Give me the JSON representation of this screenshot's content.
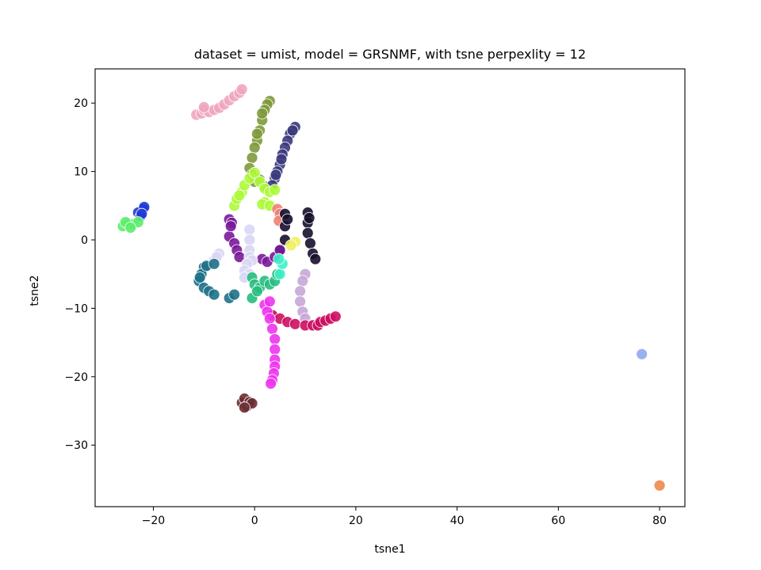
{
  "chart_data": {
    "type": "scatter",
    "title": "dataset = umist, model = GRSNMF, with tsne perpexlity = 12",
    "xlabel": "tsne1",
    "ylabel": "tsne2",
    "xlim": [
      -31.5,
      85
    ],
    "ylim": [
      -39,
      25
    ],
    "xticks": [
      -20,
      0,
      20,
      40,
      60,
      80
    ],
    "yticks": [
      -30,
      -20,
      -10,
      0,
      10,
      20
    ],
    "xtick_labels": [
      "−20",
      "0",
      "20",
      "40",
      "60",
      "80"
    ],
    "ytick_labels": [
      "−30",
      "−20",
      "−10",
      "0",
      "10",
      "20"
    ],
    "grid": false,
    "legend": "none",
    "series": [
      {
        "color": "#f0a6be",
        "points": [
          [
            -11.5,
            18.3
          ],
          [
            -10.5,
            18.5
          ],
          [
            -10,
            19
          ],
          [
            -9,
            18.7
          ],
          [
            -8,
            19
          ],
          [
            -7,
            19.3
          ],
          [
            -6,
            19.8
          ],
          [
            -5,
            20.4
          ],
          [
            -4,
            21
          ],
          [
            -3,
            21.5
          ],
          [
            -2.5,
            22
          ],
          [
            -10,
            19.4
          ]
        ]
      },
      {
        "color": "#7e9a3c",
        "points": [
          [
            3,
            20.3
          ],
          [
            2.5,
            19.8
          ],
          [
            2,
            19
          ],
          [
            1.5,
            17.5
          ],
          [
            1,
            16
          ],
          [
            0.5,
            14.5
          ],
          [
            0,
            13.5
          ],
          [
            -0.5,
            12
          ],
          [
            -1,
            10.5
          ],
          [
            -0.5,
            9.5
          ],
          [
            0,
            8.5
          ],
          [
            1,
            8.8
          ],
          [
            2,
            7.8
          ],
          [
            1.5,
            18.5
          ],
          [
            0.5,
            15.5
          ]
        ]
      },
      {
        "color": "#3b3a7c",
        "points": [
          [
            8,
            16.5
          ],
          [
            7,
            15.5
          ],
          [
            6.5,
            14.5
          ],
          [
            6,
            13.5
          ],
          [
            5.5,
            12.5
          ],
          [
            5,
            11
          ],
          [
            4.5,
            10
          ],
          [
            4,
            9
          ],
          [
            3.5,
            8
          ],
          [
            7.5,
            16
          ],
          [
            5.3,
            11.8
          ],
          [
            4.2,
            9.5
          ]
        ]
      },
      {
        "color": "#adfa3a",
        "points": [
          [
            -4,
            5
          ],
          [
            -3.5,
            6
          ],
          [
            -2.5,
            7
          ],
          [
            -2,
            8
          ],
          [
            -1,
            9
          ],
          [
            0,
            9.8
          ],
          [
            1,
            8.5
          ],
          [
            2,
            7.5
          ],
          [
            3,
            7
          ],
          [
            4,
            7.3
          ],
          [
            2,
            5.5
          ],
          [
            1.5,
            5.2
          ],
          [
            3,
            5
          ],
          [
            -3,
            6.5
          ]
        ]
      },
      {
        "color": "#1f3ad6",
        "points": [
          [
            -22,
            4.5
          ],
          [
            -23,
            4
          ],
          [
            -22.5,
            3.5
          ],
          [
            -21.8,
            4.8
          ],
          [
            -22.3,
            3.8
          ]
        ]
      },
      {
        "color": "#5ced6c",
        "points": [
          [
            -26,
            2
          ],
          [
            -25,
            2.4
          ],
          [
            -24,
            2.3
          ],
          [
            -23,
            2.6
          ],
          [
            -25.5,
            2.6
          ],
          [
            -24.5,
            1.8
          ]
        ]
      },
      {
        "color": "#f08070",
        "points": [
          [
            4.5,
            4.5
          ],
          [
            5,
            3.8
          ],
          [
            4.8,
            2.8
          ]
        ]
      },
      {
        "color": "#16102c",
        "points": [
          [
            6,
            3.8
          ],
          [
            6,
            2
          ],
          [
            6,
            0
          ],
          [
            5,
            -1.5
          ],
          [
            10.5,
            4
          ],
          [
            10.5,
            2.5
          ],
          [
            10.5,
            1
          ],
          [
            11,
            -0.5
          ],
          [
            11.5,
            -2
          ],
          [
            12,
            -2.8
          ],
          [
            6.5,
            3
          ],
          [
            10.8,
            3.2
          ]
        ]
      },
      {
        "color": "#eef060",
        "points": [
          [
            8,
            -0.3
          ],
          [
            7.2,
            -0.8
          ]
        ]
      },
      {
        "color": "#7a1a9a",
        "points": [
          [
            -5,
            3
          ],
          [
            -4.5,
            2.5
          ],
          [
            -5,
            0.5
          ],
          [
            -4,
            -0.5
          ],
          [
            -3.5,
            -1.5
          ],
          [
            -3,
            -2.5
          ],
          [
            1.5,
            -2.8
          ],
          [
            2.5,
            -3.2
          ],
          [
            4,
            -2.5
          ],
          [
            5,
            -1.5
          ],
          [
            -4.7,
            2
          ]
        ]
      },
      {
        "color": "#d8d6f4",
        "points": [
          [
            -1,
            1.5
          ],
          [
            -1,
            0
          ],
          [
            -1,
            -1.5
          ],
          [
            -1,
            -2.5
          ],
          [
            -0.5,
            -3
          ],
          [
            -1.5,
            -3.5
          ],
          [
            -7,
            -2
          ],
          [
            -8,
            -3
          ],
          [
            -2,
            -4.5
          ],
          [
            -1,
            -5
          ],
          [
            -2,
            -5.5
          ],
          [
            -7.5,
            -2.5
          ]
        ]
      },
      {
        "color": "#1e7188",
        "points": [
          [
            -10,
            -4
          ],
          [
            -10.5,
            -5
          ],
          [
            -11,
            -6
          ],
          [
            -10,
            -7
          ],
          [
            -9,
            -7.5
          ],
          [
            -8,
            -8
          ],
          [
            -9.5,
            -3.8
          ],
          [
            -8,
            -3.5
          ],
          [
            -10.8,
            -5.5
          ],
          [
            -5,
            -8.5
          ],
          [
            -4,
            -8
          ]
        ]
      },
      {
        "color": "#26be80",
        "points": [
          [
            -0.5,
            -5.5
          ],
          [
            0,
            -6.5
          ],
          [
            1,
            -7
          ],
          [
            2,
            -6
          ],
          [
            3,
            -6.5
          ],
          [
            4,
            -6
          ],
          [
            4.5,
            -5
          ],
          [
            -0.5,
            -8.5
          ],
          [
            0.5,
            -7.5
          ],
          [
            3.5,
            -11
          ]
        ]
      },
      {
        "color": "#3ef0c8",
        "points": [
          [
            5,
            -5
          ],
          [
            5.5,
            -3.5
          ],
          [
            4.8,
            -2.8
          ]
        ]
      },
      {
        "color": "#c7a6d6",
        "points": [
          [
            10,
            -5
          ],
          [
            9.5,
            -6
          ],
          [
            9,
            -7.5
          ],
          [
            9,
            -9
          ],
          [
            9.5,
            -10.5
          ],
          [
            10,
            -11.5
          ],
          [
            11,
            -12.5
          ]
        ]
      },
      {
        "color": "#cc1060",
        "points": [
          [
            3.5,
            -11
          ],
          [
            5,
            -11.5
          ],
          [
            6.5,
            -12
          ],
          [
            8,
            -12.3
          ],
          [
            10,
            -12.5
          ],
          [
            11.5,
            -12.5
          ],
          [
            12.5,
            -12.5
          ],
          [
            13,
            -12
          ],
          [
            14,
            -11.8
          ],
          [
            15,
            -11.5
          ],
          [
            16,
            -11.2
          ]
        ]
      },
      {
        "color": "#ee33ee",
        "points": [
          [
            2,
            -9.5
          ],
          [
            2.5,
            -10.5
          ],
          [
            3,
            -11.5
          ],
          [
            3.5,
            -13
          ],
          [
            4,
            -14.5
          ],
          [
            4,
            -16
          ],
          [
            4,
            -17.5
          ],
          [
            4,
            -18.5
          ],
          [
            3.8,
            -19.5
          ],
          [
            3.5,
            -20.5
          ],
          [
            3.2,
            -21
          ],
          [
            3,
            -9
          ]
        ]
      },
      {
        "color": "#6a2e33",
        "points": [
          [
            -2.5,
            -23.8
          ],
          [
            -2,
            -23.2
          ],
          [
            -1.5,
            -24.3
          ],
          [
            -1,
            -23.7
          ],
          [
            -0.5,
            -23.9
          ],
          [
            -2,
            -24.5
          ]
        ]
      },
      {
        "color": "#8fa8ef",
        "points": [
          [
            76.5,
            -16.7
          ]
        ]
      },
      {
        "color": "#f0884a",
        "points": [
          [
            80,
            -35.9
          ]
        ]
      }
    ]
  }
}
